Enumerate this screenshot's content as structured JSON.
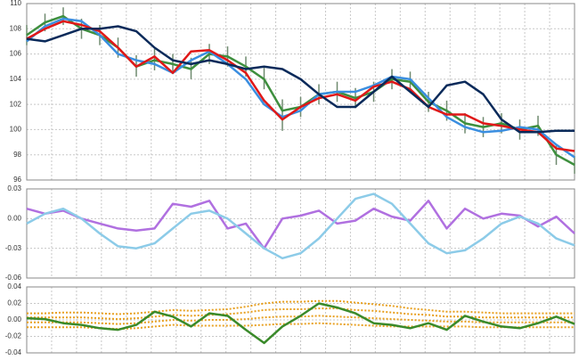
{
  "chart_data": [
    {
      "type": "line",
      "x": [
        0,
        1,
        2,
        3,
        4,
        5,
        6,
        7,
        8,
        9,
        10,
        11,
        12,
        13,
        14,
        15,
        16,
        17,
        18,
        19,
        20,
        21,
        22,
        23,
        24,
        25,
        26,
        27,
        28,
        29,
        30
      ],
      "xlim": [
        0,
        30
      ],
      "ylim": [
        96,
        110
      ],
      "yticks": [
        96,
        98,
        100,
        102,
        104,
        106,
        108,
        110
      ],
      "grid": true,
      "bars": {
        "color": "#6f8a6f",
        "high": [
          108.3,
          109.2,
          109.7,
          108.8,
          108.3,
          107.3,
          105.9,
          106.4,
          106,
          105.7,
          106.8,
          106.6,
          105.8,
          104.9,
          102.4,
          102.6,
          103.6,
          103.8,
          103.3,
          103.8,
          104.8,
          104.6,
          103,
          102.3,
          101.3,
          101,
          101.3,
          100.8,
          101.1,
          98.8,
          97.9
        ],
        "low": [
          106.7,
          107.8,
          108.3,
          107.2,
          106.7,
          105.7,
          104.2,
          104.7,
          104.4,
          104,
          105.2,
          105,
          104.2,
          103.2,
          99.9,
          101,
          102,
          102.2,
          101.7,
          102.2,
          103.2,
          103,
          101.4,
          100.7,
          99.7,
          99.4,
          99.7,
          99.2,
          99.5,
          97.2,
          96.5
        ]
      },
      "series": [
        {
          "color": "#3e8f3e",
          "values": [
            107.5,
            108.5,
            109,
            108,
            107.5,
            106.5,
            105,
            105.5,
            105.2,
            104.8,
            106,
            105.8,
            105,
            104,
            101.5,
            101.8,
            102.8,
            103,
            102.5,
            103,
            104,
            103.8,
            102.2,
            101.5,
            100.5,
            100.2,
            100.5,
            100,
            100.3,
            98,
            97.2
          ]
        },
        {
          "color": "#3a8ee0",
          "values": [
            107,
            108.2,
            108.8,
            108.6,
            107.5,
            106,
            105.5,
            105.2,
            104.5,
            105.5,
            106.2,
            105.2,
            104,
            102,
            101,
            101.5,
            102.8,
            103,
            103,
            103.5,
            104.2,
            104,
            102.5,
            101,
            100.2,
            99.8,
            99.9,
            100.2,
            100,
            98.8,
            97.8
          ]
        },
        {
          "color": "#e01818",
          "values": [
            107.2,
            108,
            108.6,
            108.3,
            107.8,
            106.5,
            105,
            105.8,
            104.5,
            106.2,
            106.3,
            105.5,
            104.5,
            102.3,
            100.8,
            101.8,
            102.5,
            102.8,
            102.3,
            103.4,
            103.8,
            103.2,
            101.8,
            101.2,
            101.2,
            100.5,
            100.3,
            100,
            99.8,
            98.5,
            98.3
          ]
        },
        {
          "color": "#0a2a5a",
          "values": [
            107.2,
            107,
            107.5,
            108,
            108,
            108.2,
            107.8,
            106.5,
            105.5,
            105.2,
            105.5,
            105.2,
            104.8,
            105,
            104.8,
            104,
            102.8,
            101.8,
            101.8,
            103,
            104.2,
            103,
            101.8,
            103.5,
            103.8,
            102.8,
            100.8,
            99.8,
            99.8,
            99.9,
            99.9
          ]
        }
      ]
    },
    {
      "type": "line",
      "x": [
        0,
        1,
        2,
        3,
        4,
        5,
        6,
        7,
        8,
        9,
        10,
        11,
        12,
        13,
        14,
        15,
        16,
        17,
        18,
        19,
        20,
        21,
        22,
        23,
        24,
        25,
        26,
        27,
        28,
        29,
        30
      ],
      "xlim": [
        0,
        30
      ],
      "ylim": [
        -0.06,
        0.03
      ],
      "yticks": [
        -0.06,
        -0.03,
        {
          "value": 0,
          "label": "0.00"
        },
        0.03
      ],
      "grid": true,
      "series": [
        {
          "color": "#b070e0",
          "values": [
            0.01,
            0.005,
            0.008,
            0.0,
            -0.005,
            -0.01,
            -0.012,
            -0.01,
            0.015,
            0.012,
            0.018,
            -0.01,
            -0.005,
            -0.03,
            0.0,
            0.003,
            0.008,
            -0.005,
            -0.002,
            0.01,
            0.002,
            -0.002,
            0.018,
            -0.01,
            0.01,
            0.0,
            0.005,
            0.003,
            -0.008,
            0.002,
            -0.015
          ]
        },
        {
          "color": "#8ccbe8",
          "values": [
            -0.005,
            0.005,
            0.01,
            0.0,
            -0.015,
            -0.028,
            -0.03,
            -0.025,
            -0.01,
            0.005,
            0.008,
            0.0,
            -0.015,
            -0.03,
            -0.04,
            -0.035,
            -0.02,
            0.0,
            0.02,
            0.025,
            0.015,
            -0.005,
            -0.025,
            -0.035,
            -0.032,
            -0.02,
            -0.005,
            0.002,
            -0.005,
            -0.02,
            -0.027
          ]
        }
      ]
    },
    {
      "type": "line",
      "x": [
        0,
        1,
        2,
        3,
        4,
        5,
        6,
        7,
        8,
        9,
        10,
        11,
        12,
        13,
        14,
        15,
        16,
        17,
        18,
        19,
        20,
        21,
        22,
        23,
        24,
        25,
        26,
        27,
        28,
        29,
        30
      ],
      "xlim": [
        0,
        30
      ],
      "ylim": [
        -0.04,
        0.04
      ],
      "yticks": [
        -0.04,
        -0.02,
        {
          "value": 0,
          "label": "0.00"
        },
        0.02,
        0.04
      ],
      "grid": true,
      "series": [
        {
          "color": "#e8a020",
          "dotted": true,
          "values": [
            0.008,
            0.008,
            0.009,
            0.009,
            0.008,
            0.007,
            0.008,
            0.01,
            0.012,
            0.011,
            0.012,
            0.013,
            0.016,
            0.02,
            0.022,
            0.022,
            0.023,
            0.023,
            0.021,
            0.019,
            0.017,
            0.014,
            0.012,
            0.01,
            0.01,
            0.009,
            0.008,
            0.008,
            0.008,
            0.008,
            0.008
          ]
        },
        {
          "color": "#e8a020",
          "dotted": true,
          "values": [
            0.003,
            0.003,
            0.003,
            0.003,
            0.002,
            0.001,
            0.002,
            0.004,
            0.006,
            0.005,
            0.006,
            0.007,
            0.009,
            0.012,
            0.013,
            0.013,
            0.014,
            0.014,
            0.012,
            0.011,
            0.009,
            0.007,
            0.006,
            0.004,
            0.004,
            0.003,
            0.003,
            0.003,
            0.003,
            0.003,
            0.003
          ]
        },
        {
          "color": "#e8a020",
          "dotted": true,
          "values": [
            -0.003,
            -0.003,
            -0.003,
            -0.003,
            -0.004,
            -0.005,
            -0.004,
            -0.002,
            0,
            -0.001,
            0,
            0,
            0.001,
            0.003,
            0.004,
            0.004,
            0.005,
            0.004,
            0.003,
            0.002,
            0.001,
            0,
            -0.001,
            -0.002,
            -0.002,
            -0.003,
            -0.003,
            -0.003,
            -0.003,
            -0.003,
            -0.003
          ]
        },
        {
          "color": "#e8a020",
          "dotted": true,
          "values": [
            -0.009,
            -0.009,
            -0.009,
            -0.009,
            -0.01,
            -0.011,
            -0.01,
            -0.008,
            -0.006,
            -0.007,
            -0.007,
            -0.007,
            -0.007,
            -0.006,
            -0.005,
            -0.005,
            -0.004,
            -0.005,
            -0.006,
            -0.007,
            -0.008,
            -0.008,
            -0.008,
            -0.008,
            -0.008,
            -0.009,
            -0.009,
            -0.009,
            -0.009,
            -0.009,
            -0.009
          ]
        },
        {
          "color": "#3a8a2a",
          "values": [
            0.002,
            0.001,
            -0.004,
            -0.006,
            -0.01,
            -0.012,
            -0.006,
            0.01,
            0.004,
            -0.008,
            0.008,
            0.005,
            -0.012,
            -0.028,
            -0.008,
            0.005,
            0.02,
            0.015,
            0.008,
            -0.004,
            -0.006,
            -0.01,
            -0.004,
            -0.012,
            0.005,
            -0.002,
            -0.008,
            -0.01,
            -0.004,
            0.004,
            -0.005
          ]
        }
      ]
    }
  ]
}
